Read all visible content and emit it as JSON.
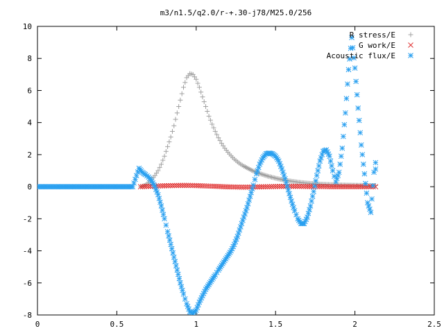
{
  "chart_data": {
    "type": "scatter",
    "title": "m3/n1.5/q2.0/r-+.30-j78/M25.0/256",
    "xlabel": "",
    "ylabel": "",
    "xlim": [
      0,
      2.5
    ],
    "ylim": [
      -8,
      10
    ],
    "x_ticks": [
      "0",
      "0.5",
      "1",
      "1.5",
      "2",
      "2.5"
    ],
    "y_ticks": [
      "-8",
      "-6",
      "-4",
      "-2",
      "0",
      "2",
      "4",
      "6",
      "8",
      "10"
    ],
    "legend_position": "top-right",
    "grid": false,
    "series": [
      {
        "name": "R stress/E",
        "marker": "plus",
        "color": "#a0a0a0",
        "points": [
          [
            0.65,
            0.0
          ],
          [
            0.68,
            0.1
          ],
          [
            0.7,
            0.25
          ],
          [
            0.72,
            0.45
          ],
          [
            0.74,
            0.7
          ],
          [
            0.76,
            1.0
          ],
          [
            0.78,
            1.4
          ],
          [
            0.8,
            1.9
          ],
          [
            0.82,
            2.5
          ],
          [
            0.84,
            3.1
          ],
          [
            0.86,
            3.8
          ],
          [
            0.88,
            4.6
          ],
          [
            0.9,
            5.4
          ],
          [
            0.92,
            6.2
          ],
          [
            0.94,
            6.8
          ],
          [
            0.96,
            7.05
          ],
          [
            0.98,
            7.0
          ],
          [
            1.0,
            6.7
          ],
          [
            1.02,
            6.2
          ],
          [
            1.04,
            5.6
          ],
          [
            1.06,
            5.0
          ],
          [
            1.08,
            4.4
          ],
          [
            1.1,
            3.9
          ],
          [
            1.12,
            3.45
          ],
          [
            1.14,
            3.05
          ],
          [
            1.16,
            2.7
          ],
          [
            1.18,
            2.4
          ],
          [
            1.2,
            2.15
          ],
          [
            1.22,
            1.92
          ],
          [
            1.24,
            1.72
          ],
          [
            1.26,
            1.55
          ],
          [
            1.28,
            1.4
          ],
          [
            1.3,
            1.28
          ],
          [
            1.35,
            1.02
          ],
          [
            1.4,
            0.82
          ],
          [
            1.45,
            0.66
          ],
          [
            1.5,
            0.53
          ],
          [
            1.55,
            0.42
          ],
          [
            1.6,
            0.34
          ],
          [
            1.65,
            0.27
          ],
          [
            1.7,
            0.22
          ],
          [
            1.75,
            0.18
          ],
          [
            1.8,
            0.15
          ],
          [
            1.85,
            0.13
          ],
          [
            1.9,
            0.11
          ],
          [
            1.95,
            0.1
          ],
          [
            2.0,
            0.09
          ],
          [
            2.05,
            0.08
          ],
          [
            2.1,
            0.07
          ],
          [
            2.13,
            0.07
          ]
        ]
      },
      {
        "name": "G work/E",
        "marker": "cross",
        "color": "#e03030",
        "points": [
          [
            0.65,
            0.0
          ],
          [
            0.7,
            0.02
          ],
          [
            0.75,
            0.04
          ],
          [
            0.8,
            0.06
          ],
          [
            0.85,
            0.07
          ],
          [
            0.9,
            0.08
          ],
          [
            0.95,
            0.08
          ],
          [
            1.0,
            0.07
          ],
          [
            1.05,
            0.05
          ],
          [
            1.1,
            0.03
          ],
          [
            1.15,
            0.01
          ],
          [
            1.2,
            -0.01
          ],
          [
            1.25,
            -0.02
          ],
          [
            1.3,
            -0.03
          ],
          [
            1.35,
            -0.02
          ],
          [
            1.4,
            -0.01
          ],
          [
            1.45,
            0.0
          ],
          [
            1.5,
            0.01
          ],
          [
            1.55,
            0.02
          ],
          [
            1.6,
            0.02
          ],
          [
            1.65,
            0.02
          ],
          [
            1.7,
            0.01
          ],
          [
            1.75,
            0.01
          ],
          [
            1.8,
            0.01
          ],
          [
            1.85,
            0.0
          ],
          [
            1.9,
            0.0
          ],
          [
            1.95,
            0.0
          ],
          [
            2.0,
            0.0
          ],
          [
            2.05,
            0.0
          ],
          [
            2.1,
            0.0
          ],
          [
            2.13,
            0.0
          ]
        ]
      },
      {
        "name": "Acoustic flux/E",
        "marker": "star",
        "color": "#2aa0f0",
        "points": [
          [
            0.0,
            0.0
          ],
          [
            0.05,
            0.0
          ],
          [
            0.1,
            0.0
          ],
          [
            0.15,
            0.0
          ],
          [
            0.2,
            0.0
          ],
          [
            0.25,
            0.0
          ],
          [
            0.3,
            0.0
          ],
          [
            0.35,
            0.0
          ],
          [
            0.4,
            0.0
          ],
          [
            0.45,
            0.0
          ],
          [
            0.5,
            0.0
          ],
          [
            0.55,
            0.0
          ],
          [
            0.6,
            0.0
          ],
          [
            0.64,
            1.15
          ],
          [
            0.66,
            0.9
          ],
          [
            0.68,
            0.75
          ],
          [
            0.7,
            0.6
          ],
          [
            0.72,
            0.35
          ],
          [
            0.74,
            0.0
          ],
          [
            0.76,
            -0.5
          ],
          [
            0.78,
            -1.2
          ],
          [
            0.8,
            -2.0
          ],
          [
            0.82,
            -2.8
          ],
          [
            0.84,
            -3.6
          ],
          [
            0.86,
            -4.4
          ],
          [
            0.88,
            -5.2
          ],
          [
            0.9,
            -6.0
          ],
          [
            0.92,
            -6.7
          ],
          [
            0.94,
            -7.3
          ],
          [
            0.96,
            -7.8
          ],
          [
            0.98,
            -7.9
          ],
          [
            1.0,
            -7.7
          ],
          [
            1.02,
            -7.2
          ],
          [
            1.04,
            -6.8
          ],
          [
            1.06,
            -6.4
          ],
          [
            1.08,
            -6.1
          ],
          [
            1.1,
            -5.8
          ],
          [
            1.12,
            -5.5
          ],
          [
            1.14,
            -5.2
          ],
          [
            1.16,
            -4.9
          ],
          [
            1.18,
            -4.6
          ],
          [
            1.2,
            -4.3
          ],
          [
            1.22,
            -4.0
          ],
          [
            1.24,
            -3.6
          ],
          [
            1.26,
            -3.1
          ],
          [
            1.28,
            -2.5
          ],
          [
            1.3,
            -1.9
          ],
          [
            1.32,
            -1.3
          ],
          [
            1.34,
            -0.6
          ],
          [
            1.36,
            0.1
          ],
          [
            1.38,
            0.8
          ],
          [
            1.4,
            1.4
          ],
          [
            1.42,
            1.8
          ],
          [
            1.44,
            2.05
          ],
          [
            1.46,
            2.1
          ],
          [
            1.48,
            2.05
          ],
          [
            1.5,
            1.9
          ],
          [
            1.52,
            1.6
          ],
          [
            1.54,
            1.1
          ],
          [
            1.56,
            0.5
          ],
          [
            1.58,
            -0.2
          ],
          [
            1.6,
            -0.9
          ],
          [
            1.62,
            -1.5
          ],
          [
            1.64,
            -2.0
          ],
          [
            1.66,
            -2.3
          ],
          [
            1.68,
            -2.3
          ],
          [
            1.7,
            -1.9
          ],
          [
            1.72,
            -1.2
          ],
          [
            1.74,
            -0.3
          ],
          [
            1.76,
            0.7
          ],
          [
            1.78,
            1.6
          ],
          [
            1.8,
            2.2
          ],
          [
            1.82,
            2.3
          ],
          [
            1.84,
            1.9
          ],
          [
            1.86,
            1.0
          ],
          [
            1.88,
            0.3
          ],
          [
            1.9,
            0.9
          ],
          [
            1.92,
            2.4
          ],
          [
            1.94,
            4.6
          ],
          [
            1.96,
            7.3
          ],
          [
            1.98,
            9.3
          ],
          [
            2.0,
            7.4
          ],
          [
            2.02,
            4.9
          ],
          [
            2.04,
            2.6
          ],
          [
            2.06,
            0.8
          ],
          [
            2.08,
            -1.0
          ],
          [
            2.1,
            -1.6
          ],
          [
            2.12,
            0.9
          ],
          [
            2.13,
            1.5
          ],
          [
            2.13,
            1.1
          ]
        ]
      }
    ]
  }
}
